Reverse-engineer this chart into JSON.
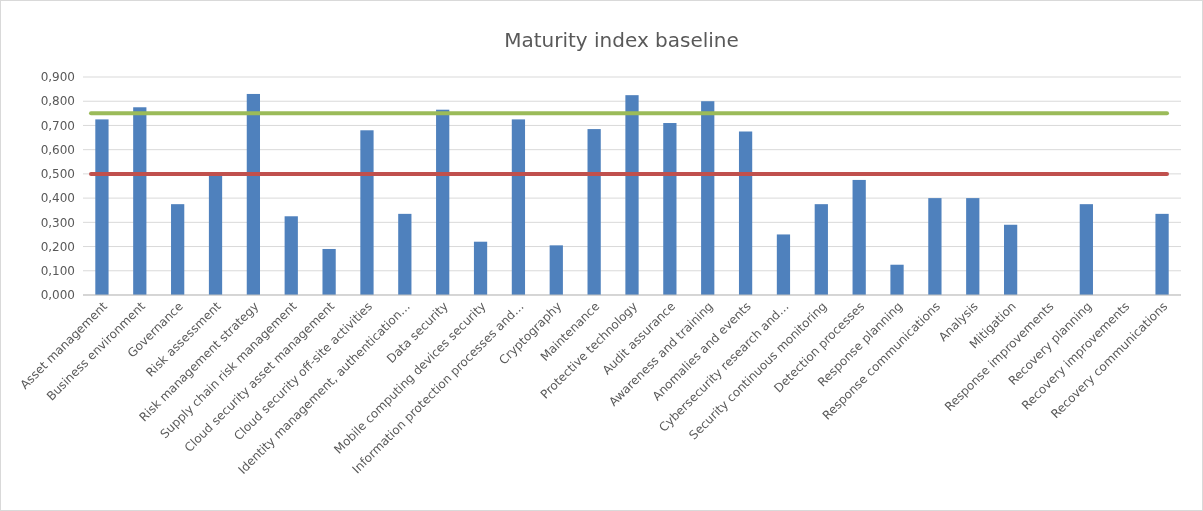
{
  "chart_data": {
    "type": "bar",
    "title": "Maturity index baseline",
    "categories": [
      "Asset management",
      "Business environment",
      "Governance",
      "Risk assessment",
      "Risk management strategy",
      "Supply chain risk management",
      "Cloud security asset management",
      "Cloud security off-site activities",
      "Identity management, authentication…",
      "Data security",
      "Mobile computing devices security",
      "Information protection processes and…",
      "Cryptography",
      "Maintenance",
      "Protective technology",
      "Audit assurance",
      "Awareness and training",
      "Anomalies and events",
      "Cybersecurity research and…",
      "Security continuous monitoring",
      "Detection processes",
      "Response planning",
      "Response communications",
      "Analysis",
      "Mitigation",
      "Response improvements",
      "Recovery planning",
      "Recovery improvements",
      "Recovery communications"
    ],
    "series": [
      {
        "color": "#4f81bd",
        "values": [
          0.725,
          0.775,
          0.375,
          0.5,
          0.83,
          0.325,
          0.19,
          0.68,
          0.335,
          0.765,
          0.22,
          0.725,
          0.205,
          0.685,
          0.825,
          0.71,
          0.8,
          0.675,
          0.25,
          0.375,
          0.475,
          0.125,
          0.4,
          0.4,
          0.29,
          0,
          0.375,
          0,
          0.335
        ]
      }
    ],
    "ylim": [
      0,
      0.9
    ],
    "yticks": [
      {
        "value": 0,
        "label": "0,000"
      },
      {
        "value": 0.1,
        "label": "0,100"
      },
      {
        "value": 0.2,
        "label": "0,200"
      },
      {
        "value": 0.3,
        "label": "0,300"
      },
      {
        "value": 0.4,
        "label": "0,400"
      },
      {
        "value": 0.5,
        "label": "0,500"
      },
      {
        "value": 0.6,
        "label": "0,600"
      },
      {
        "value": 0.7,
        "label": "0,700"
      },
      {
        "value": 0.8,
        "label": "0,800"
      },
      {
        "value": 0.9,
        "label": "0,900"
      }
    ],
    "grid": "y",
    "ref_lines": [
      {
        "axis": "y",
        "value": 0.75,
        "color": "#9bbb59"
      },
      {
        "axis": "y",
        "value": 0.5,
        "color": "#c0504d"
      }
    ]
  }
}
